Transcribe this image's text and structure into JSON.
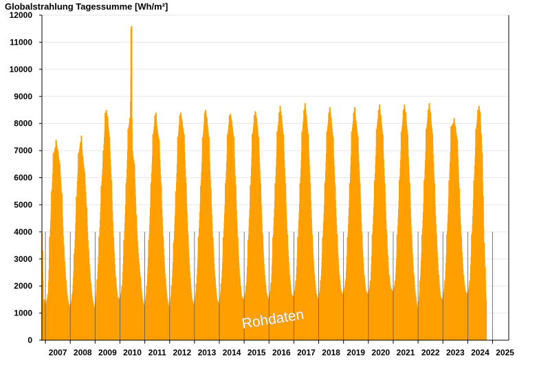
{
  "chart_data": {
    "type": "bar",
    "title": "Globalstrahlung Tagessumme [Wh/m²]",
    "watermark": "Rohdaten",
    "ylim": [
      0,
      12000
    ],
    "y_ticks": [
      0,
      1000,
      2000,
      3000,
      4000,
      5000,
      6000,
      7000,
      8000,
      9000,
      10000,
      11000,
      12000
    ],
    "x_range": [
      2006.86,
      2025.65
    ],
    "x_ticks": [
      "2007",
      "2008",
      "2009",
      "2010",
      "2011",
      "2012",
      "2013",
      "2014",
      "2015",
      "2016",
      "2017",
      "2018",
      "2019",
      "2020",
      "2021",
      "2022",
      "2023",
      "2024",
      "2025"
    ],
    "grid": true,
    "bar_color": "#ff9f00",
    "year_divider_color": "#555555",
    "series": [
      {
        "values": [
          [
            2006.86,
            3950
          ],
          [
            2006.88,
            3300
          ],
          [
            2006.9,
            2200
          ],
          [
            2006.92,
            1450
          ],
          [
            2006.94,
            800
          ],
          [
            2006.96,
            1500
          ],
          [
            2006.98,
            800
          ],
          [
            2007.0,
            1300
          ],
          [
            2007.1,
            1700
          ],
          [
            2007.17,
            3800
          ],
          [
            2007.25,
            5500
          ],
          [
            2007.32,
            6900
          ],
          [
            2007.39,
            7100
          ],
          [
            2007.43,
            7400
          ],
          [
            2007.5,
            7000
          ],
          [
            2007.58,
            6500
          ],
          [
            2007.66,
            5400
          ],
          [
            2007.74,
            3500
          ],
          [
            2007.83,
            2200
          ],
          [
            2007.91,
            1450
          ],
          [
            2007.99,
            1200
          ],
          [
            2008.08,
            1700
          ],
          [
            2008.16,
            3200
          ],
          [
            2008.25,
            5300
          ],
          [
            2008.33,
            6900
          ],
          [
            2008.41,
            7300
          ],
          [
            2008.45,
            7550
          ],
          [
            2008.5,
            6800
          ],
          [
            2008.58,
            6200
          ],
          [
            2008.66,
            4900
          ],
          [
            2008.74,
            3300
          ],
          [
            2008.83,
            2100
          ],
          [
            2008.91,
            1450
          ],
          [
            2008.99,
            1150
          ],
          [
            2009.08,
            2250
          ],
          [
            2009.16,
            3800
          ],
          [
            2009.25,
            5700
          ],
          [
            2009.33,
            7000
          ],
          [
            2009.41,
            8400
          ],
          [
            2009.45,
            8500
          ],
          [
            2009.5,
            8250
          ],
          [
            2009.58,
            7500
          ],
          [
            2009.66,
            5900
          ],
          [
            2009.74,
            3800
          ],
          [
            2009.83,
            2300
          ],
          [
            2009.91,
            1600
          ],
          [
            2009.99,
            1500
          ],
          [
            2010.08,
            2000
          ],
          [
            2010.16,
            3700
          ],
          [
            2010.25,
            5800
          ],
          [
            2010.33,
            7800
          ],
          [
            2010.4,
            8200
          ],
          [
            2010.45,
            11500
          ],
          [
            2010.47,
            11600
          ],
          [
            2010.5,
            7000
          ],
          [
            2010.58,
            6500
          ],
          [
            2010.66,
            4600
          ],
          [
            2010.74,
            3200
          ],
          [
            2010.83,
            2300
          ],
          [
            2010.91,
            1500
          ],
          [
            2010.99,
            1250
          ],
          [
            2011.08,
            2000
          ],
          [
            2011.16,
            3700
          ],
          [
            2011.25,
            5800
          ],
          [
            2011.33,
            7600
          ],
          [
            2011.41,
            8300
          ],
          [
            2011.45,
            8400
          ],
          [
            2011.5,
            7800
          ],
          [
            2011.58,
            7400
          ],
          [
            2011.66,
            5700
          ],
          [
            2011.74,
            3800
          ],
          [
            2011.83,
            2300
          ],
          [
            2011.91,
            1500
          ],
          [
            2011.99,
            1200
          ],
          [
            2012.08,
            2000
          ],
          [
            2012.16,
            3600
          ],
          [
            2012.25,
            5500
          ],
          [
            2012.33,
            7500
          ],
          [
            2012.41,
            8300
          ],
          [
            2012.45,
            8400
          ],
          [
            2012.5,
            8100
          ],
          [
            2012.58,
            7600
          ],
          [
            2012.66,
            5800
          ],
          [
            2012.74,
            3900
          ],
          [
            2012.83,
            2300
          ],
          [
            2012.91,
            1500
          ],
          [
            2012.99,
            1300
          ],
          [
            2013.08,
            2100
          ],
          [
            2013.16,
            3800
          ],
          [
            2013.25,
            5700
          ],
          [
            2013.33,
            7500
          ],
          [
            2013.41,
            8400
          ],
          [
            2013.45,
            8500
          ],
          [
            2013.5,
            8200
          ],
          [
            2013.58,
            7500
          ],
          [
            2013.66,
            5600
          ],
          [
            2013.74,
            3800
          ],
          [
            2013.83,
            2300
          ],
          [
            2013.91,
            1500
          ],
          [
            2013.99,
            1350
          ],
          [
            2014.08,
            2100
          ],
          [
            2014.16,
            3800
          ],
          [
            2014.25,
            5800
          ],
          [
            2014.33,
            7600
          ],
          [
            2014.41,
            8300
          ],
          [
            2014.45,
            8350
          ],
          [
            2014.5,
            8100
          ],
          [
            2014.58,
            7500
          ],
          [
            2014.66,
            5700
          ],
          [
            2014.74,
            3800
          ],
          [
            2014.83,
            2300
          ],
          [
            2014.91,
            1600
          ],
          [
            2014.99,
            1500
          ],
          [
            2015.08,
            2000
          ],
          [
            2015.16,
            3700
          ],
          [
            2015.25,
            5700
          ],
          [
            2015.33,
            7600
          ],
          [
            2015.41,
            8300
          ],
          [
            2015.45,
            8450
          ],
          [
            2015.5,
            8200
          ],
          [
            2015.58,
            7500
          ],
          [
            2015.66,
            5800
          ],
          [
            2015.74,
            3900
          ],
          [
            2015.83,
            2400
          ],
          [
            2015.91,
            1700
          ],
          [
            2015.99,
            1500
          ],
          [
            2016.08,
            2100
          ],
          [
            2016.16,
            3800
          ],
          [
            2016.25,
            5800
          ],
          [
            2016.33,
            7700
          ],
          [
            2016.41,
            8400
          ],
          [
            2016.45,
            8650
          ],
          [
            2016.5,
            8300
          ],
          [
            2016.58,
            7600
          ],
          [
            2016.66,
            5800
          ],
          [
            2016.74,
            3900
          ],
          [
            2016.83,
            2400
          ],
          [
            2016.91,
            1700
          ],
          [
            2016.99,
            1600
          ],
          [
            2017.08,
            2200
          ],
          [
            2017.16,
            3800
          ],
          [
            2017.25,
            5800
          ],
          [
            2017.33,
            7700
          ],
          [
            2017.41,
            8500
          ],
          [
            2017.45,
            8750
          ],
          [
            2017.5,
            8300
          ],
          [
            2017.58,
            7600
          ],
          [
            2017.66,
            5800
          ],
          [
            2017.74,
            3900
          ],
          [
            2017.83,
            2400
          ],
          [
            2017.91,
            1700
          ],
          [
            2017.99,
            1500
          ],
          [
            2018.08,
            2200
          ],
          [
            2018.16,
            3800
          ],
          [
            2018.25,
            5800
          ],
          [
            2018.33,
            7700
          ],
          [
            2018.41,
            8400
          ],
          [
            2018.45,
            8600
          ],
          [
            2018.5,
            8200
          ],
          [
            2018.58,
            7500
          ],
          [
            2018.66,
            5700
          ],
          [
            2018.74,
            3900
          ],
          [
            2018.83,
            2400
          ],
          [
            2018.91,
            1800
          ],
          [
            2018.99,
            1700
          ],
          [
            2019.08,
            2200
          ],
          [
            2019.16,
            3800
          ],
          [
            2019.25,
            5800
          ],
          [
            2019.33,
            7700
          ],
          [
            2019.41,
            8400
          ],
          [
            2019.45,
            8600
          ],
          [
            2019.5,
            8100
          ],
          [
            2019.58,
            7500
          ],
          [
            2019.66,
            5800
          ],
          [
            2019.74,
            3900
          ],
          [
            2019.83,
            2400
          ],
          [
            2019.91,
            1800
          ],
          [
            2019.99,
            1700
          ],
          [
            2020.08,
            2200
          ],
          [
            2020.16,
            3900
          ],
          [
            2020.25,
            5900
          ],
          [
            2020.33,
            7800
          ],
          [
            2020.41,
            8500
          ],
          [
            2020.45,
            8700
          ],
          [
            2020.5,
            8300
          ],
          [
            2020.58,
            7600
          ],
          [
            2020.66,
            5800
          ],
          [
            2020.74,
            3900
          ],
          [
            2020.83,
            2400
          ],
          [
            2020.91,
            1900
          ],
          [
            2020.99,
            1800
          ],
          [
            2021.08,
            2200
          ],
          [
            2021.16,
            3900
          ],
          [
            2021.25,
            5900
          ],
          [
            2021.33,
            7700
          ],
          [
            2021.41,
            8500
          ],
          [
            2021.45,
            8700
          ],
          [
            2021.5,
            8400
          ],
          [
            2021.58,
            7600
          ],
          [
            2021.66,
            5800
          ],
          [
            2021.74,
            3900
          ],
          [
            2021.83,
            2400
          ],
          [
            2021.91,
            1600
          ],
          [
            2021.99,
            1100
          ],
          [
            2022.08,
            2200
          ],
          [
            2022.16,
            3900
          ],
          [
            2022.25,
            5900
          ],
          [
            2022.33,
            7800
          ],
          [
            2022.41,
            8500
          ],
          [
            2022.45,
            8750
          ],
          [
            2022.5,
            8400
          ],
          [
            2022.58,
            7600
          ],
          [
            2022.66,
            5800
          ],
          [
            2022.74,
            3900
          ],
          [
            2022.83,
            2400
          ],
          [
            2022.91,
            1600
          ],
          [
            2022.99,
            1500
          ],
          [
            2023.08,
            2200
          ],
          [
            2023.16,
            3900
          ],
          [
            2023.25,
            5900
          ],
          [
            2023.33,
            7900
          ],
          [
            2023.41,
            8000
          ],
          [
            2023.45,
            8200
          ],
          [
            2023.5,
            7900
          ],
          [
            2023.58,
            7400
          ],
          [
            2023.66,
            5600
          ],
          [
            2023.74,
            3800
          ],
          [
            2023.83,
            2400
          ],
          [
            2023.91,
            1800
          ],
          [
            2023.99,
            1700
          ],
          [
            2024.08,
            2200
          ],
          [
            2024.16,
            3900
          ],
          [
            2024.25,
            5900
          ],
          [
            2024.33,
            7800
          ],
          [
            2024.41,
            8500
          ],
          [
            2024.45,
            8650
          ],
          [
            2024.5,
            8400
          ],
          [
            2024.54,
            7600
          ],
          [
            2024.58,
            6900
          ],
          [
            2024.62,
            5300
          ],
          [
            2024.66,
            3600
          ],
          [
            2024.7,
            2700
          ],
          [
            2024.74,
            1500
          ]
        ]
      }
    ]
  }
}
